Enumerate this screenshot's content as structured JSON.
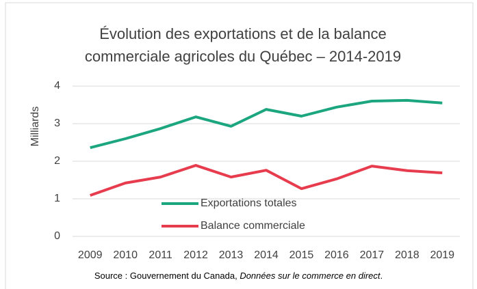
{
  "chart_data": {
    "type": "line",
    "title": "Évolution des exportations et de la balance commerciale agricoles du Québec – 2014-2019",
    "y_label": "Milliards",
    "categories": [
      "2009",
      "2010",
      "2011",
      "2012",
      "2013",
      "2014",
      "2015",
      "2016",
      "2017",
      "2018",
      "2019"
    ],
    "series": [
      {
        "name": "Exportations totales",
        "color": "#1ca67f",
        "values": [
          2.36,
          2.6,
          2.87,
          3.18,
          2.93,
          3.38,
          3.2,
          3.44,
          3.6,
          3.62,
          3.55
        ]
      },
      {
        "name": "Balance commerciale",
        "color": "#e73c4e",
        "values": [
          1.09,
          1.42,
          1.58,
          1.89,
          1.58,
          1.76,
          1.27,
          1.53,
          1.87,
          1.75,
          1.69
        ]
      }
    ],
    "ylim": [
      0,
      4
    ],
    "yticks": [
      0,
      1,
      2,
      3,
      4
    ],
    "grid": true,
    "source": {
      "prefix": "Source : Gouvernement du Canada, ",
      "italic": "Données sur le commerce en direct",
      "suffix": "."
    }
  }
}
